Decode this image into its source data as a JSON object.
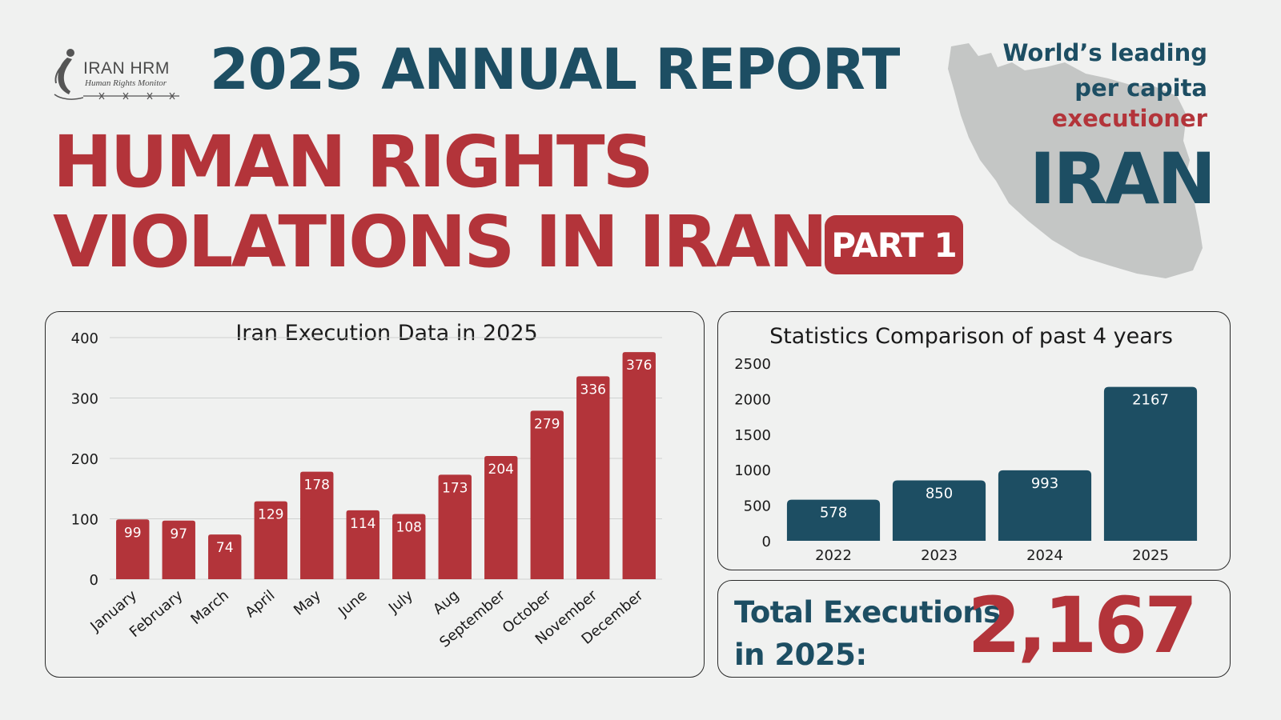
{
  "logo": {
    "name": "IRAN HRM",
    "subtitle": "Human Rights Monitor"
  },
  "header": {
    "report_title": "2025 ANNUAL REPORT",
    "headline_line1": "HUMAN RIGHTS",
    "headline_line2": "VIOLATIONS IN IRAN",
    "part_badge": "PART 1"
  },
  "tagline": {
    "line1": "World’s leading",
    "line2": "per capita",
    "line3": "executioner",
    "country": "IRAN"
  },
  "colors": {
    "navy": "#1d4e63",
    "red": "#b3343a",
    "map_gray": "#c4c6c5",
    "background": "#f0f1f0"
  },
  "total": {
    "label_line1": "Total Executions",
    "label_line2": "in 2025:",
    "value": "2,167"
  },
  "chart_data": [
    {
      "type": "bar",
      "title": "Iran Execution Data in 2025",
      "xlabel": "",
      "ylabel": "",
      "categories": [
        "January",
        "February",
        "March",
        "April",
        "May",
        "June",
        "July",
        "Aug",
        "September",
        "October",
        "November",
        "December"
      ],
      "values": [
        99,
        97,
        74,
        129,
        178,
        114,
        108,
        173,
        204,
        279,
        336,
        376
      ],
      "ylim": [
        0,
        400
      ],
      "yticks": [
        0,
        100,
        200,
        300,
        400
      ],
      "grid": true,
      "color": "#b3343a",
      "data_labels": true
    },
    {
      "type": "bar",
      "title": "Statistics Comparison of past 4 years",
      "xlabel": "",
      "ylabel": "",
      "categories": [
        "2022",
        "2023",
        "2024",
        "2025"
      ],
      "values": [
        578,
        850,
        993,
        2167
      ],
      "ylim": [
        0,
        2500
      ],
      "yticks": [
        0,
        500,
        1000,
        1500,
        2000,
        2500
      ],
      "grid": false,
      "color": "#1d4e63",
      "data_labels": true
    }
  ]
}
